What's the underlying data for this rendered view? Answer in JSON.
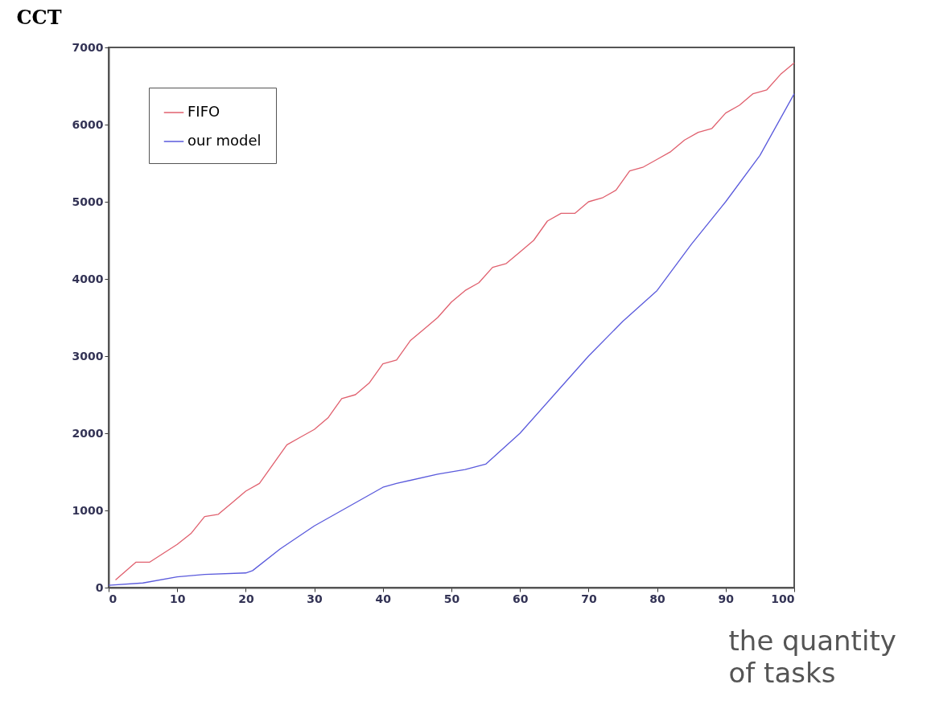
{
  "chart_data": {
    "type": "line",
    "xlabel": "the quantity of tasks",
    "ylabel": "CCT",
    "xlim": [
      0,
      100
    ],
    "xticks": [
      0,
      10,
      20,
      30,
      40,
      50,
      60,
      70,
      80,
      90,
      100
    ],
    "ylim": [
      0,
      7000
    ],
    "yticks": [
      0,
      1000,
      2000,
      3000,
      4000,
      5000,
      6000,
      7000
    ],
    "grid": false,
    "legend": "top left",
    "line_style": "solid",
    "marker": "none",
    "series": [
      {
        "name": "FIFO",
        "color": "#e0606e",
        "x": [
          1,
          4,
          6,
          10,
          12,
          14,
          16,
          18,
          20,
          22,
          24,
          26,
          28,
          30,
          32,
          34,
          36,
          38,
          40,
          42,
          44,
          46,
          48,
          50,
          52,
          54,
          56,
          58,
          60,
          62,
          64,
          66,
          68,
          70,
          72,
          74,
          76,
          78,
          80,
          82,
          84,
          86,
          88,
          90,
          92,
          94,
          96,
          98,
          100
        ],
        "values": [
          100,
          330,
          330,
          560,
          700,
          920,
          950,
          1100,
          1250,
          1350,
          1600,
          1850,
          1950,
          2050,
          2200,
          2450,
          2500,
          2650,
          2900,
          2950,
          3200,
          3350,
          3500,
          3700,
          3850,
          3950,
          4150,
          4200,
          4350,
          4500,
          4750,
          4850,
          4850,
          5000,
          5050,
          5150,
          5400,
          5450,
          5550,
          5650,
          5800,
          5900,
          5950,
          6150,
          6250,
          6400,
          6450,
          6650,
          6800
        ]
      },
      {
        "name": "our model",
        "color": "#5a5adc",
        "x": [
          0,
          5,
          10,
          14,
          20,
          21,
          25,
          30,
          35,
          40,
          42,
          48,
          52,
          55,
          60,
          65,
          70,
          75,
          80,
          85,
          90,
          95,
          100
        ],
        "values": [
          30,
          60,
          140,
          170,
          190,
          220,
          500,
          800,
          1050,
          1300,
          1350,
          1470,
          1530,
          1600,
          2000,
          2500,
          3000,
          3450,
          3850,
          4450,
          5000,
          5600,
          6400
        ]
      }
    ]
  }
}
